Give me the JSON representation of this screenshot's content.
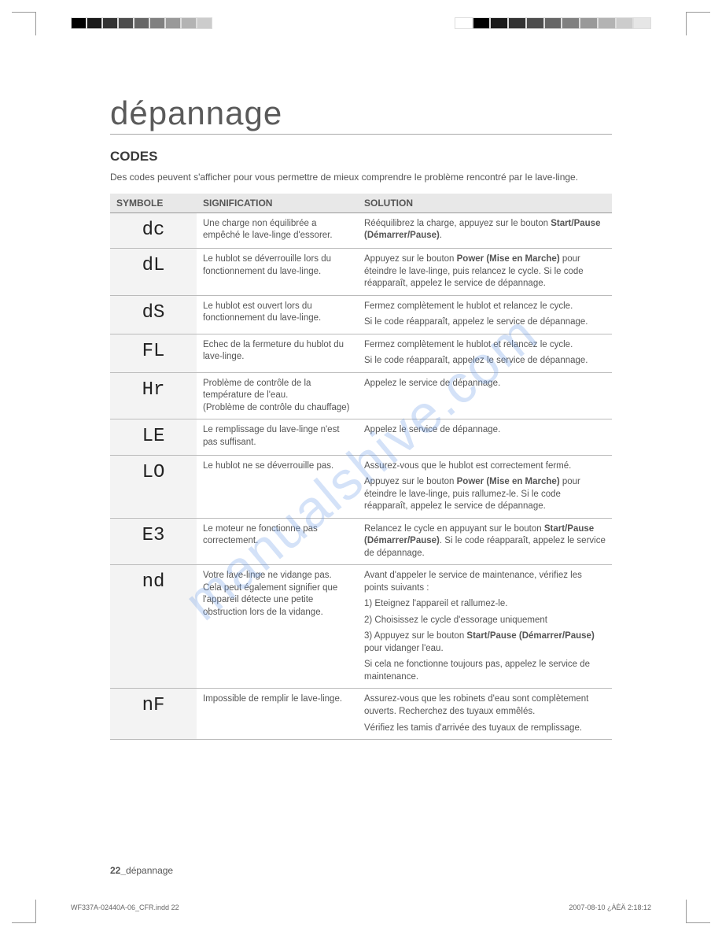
{
  "title": "dépannage",
  "section": "CODES",
  "intro": "Des codes peuvent s'afficher pour vous permettre de mieux comprendre le problème rencontré par le lave-linge.",
  "watermark": "manualshive.com",
  "footer_page": "22_",
  "footer_label": "dépannage",
  "print_left": "WF337A-02440A-06_CFR.indd   22",
  "print_right": "2007-08-10   ¿ÀÈÄ 2:18:12",
  "columns": {
    "c1": "SYMBOLE",
    "c2": "SIGNIFICATION",
    "c3": "SOLUTION"
  },
  "colorbar_left": [
    "#000000",
    "#1a1a1a",
    "#333333",
    "#4d4d4d",
    "#666666",
    "#808080",
    "#999999",
    "#b3b3b3",
    "#cccccc"
  ],
  "colorbar_right": [
    "#ffffff",
    "#000000",
    "#1a1a1a",
    "#333333",
    "#4d4d4d",
    "#666666",
    "#808080",
    "#999999",
    "#b3b3b3",
    "#cccccc",
    "#e6e6e6"
  ],
  "rows": [
    {
      "symbole": "dc",
      "signif": "Une charge non équilibrée a empêché le lave-linge d'essorer.",
      "solution": [
        "Rééquilibrez la charge, appuyez sur le bouton <b>Start/Pause (Démarrer/Pause)</b>."
      ]
    },
    {
      "symbole": "dL",
      "signif": "Le hublot se déverrouille lors du fonctionnement du lave-linge.",
      "solution": [
        "Appuyez sur le bouton <b>Power (Mise en Marche)</b> pour éteindre le lave-linge, puis relancez le cycle. Si le code réapparaît, appelez le service de dépannage."
      ]
    },
    {
      "symbole": "dS",
      "signif": "Le hublot est ouvert lors du fonctionnement du lave-linge.",
      "solution": [
        "Fermez complètement le hublot et relancez le cycle.",
        "Si le code réapparaît, appelez le service de dépannage."
      ]
    },
    {
      "symbole": "FL",
      "signif": "Echec de la fermeture du hublot du lave-linge.",
      "solution": [
        "Fermez complètement le hublot et relancez le cycle.",
        "Si le code réapparaît, appelez le service de dépannage."
      ]
    },
    {
      "symbole": "Hr",
      "signif": "Problème de contrôle de la température de l'eau.<br>(Problème de contrôle du chauffage)",
      "solution": [
        "Appelez le service de dépannage."
      ]
    },
    {
      "symbole": "LE",
      "signif": "Le remplissage du lave-linge n'est pas suffisant.",
      "solution": [
        "Appelez le service de dépannage."
      ]
    },
    {
      "symbole": "LO",
      "signif": "Le hublot ne se déverrouille pas.",
      "solution": [
        "Assurez-vous que le hublot est correctement fermé.",
        "Appuyez sur le bouton <b>Power (Mise en Marche)</b> pour éteindre le lave-linge, puis rallumez-le. Si le code réapparaît, appelez le service de dépannage."
      ]
    },
    {
      "symbole": "E3",
      "signif": "Le moteur ne fonctionne pas correctement.",
      "solution": [
        "Relancez le cycle en appuyant sur le bouton <b>Start/Pause (Démarrer/Pause)</b>. Si le code réapparaît, appelez le service de dépannage."
      ]
    },
    {
      "symbole": "nd",
      "signif": "Votre lave-linge ne vidange pas.<br>Cela peut également signifier que l'appareil détecte une petite obstruction lors de la vidange.",
      "solution": [
        "Avant d'appeler le service de maintenance, vérifiez les points suivants :",
        "1) Eteignez l'appareil et rallumez-le.",
        "2) Choisissez le cycle d'essorage uniquement",
        "3) Appuyez sur le bouton <b>Start/Pause (Démarrer/Pause)</b> pour vidanger l'eau.",
        "Si cela ne fonctionne toujours pas, appelez le service de maintenance."
      ]
    },
    {
      "symbole": "nF",
      "signif": "Impossible de remplir le lave-linge.",
      "solution": [
        "Assurez-vous que les robinets d'eau sont complètement ouverts. Recherchez des tuyaux emmêlés.",
        "Vérifiez les tamis d'arrivée des tuyaux de remplissage."
      ]
    }
  ]
}
